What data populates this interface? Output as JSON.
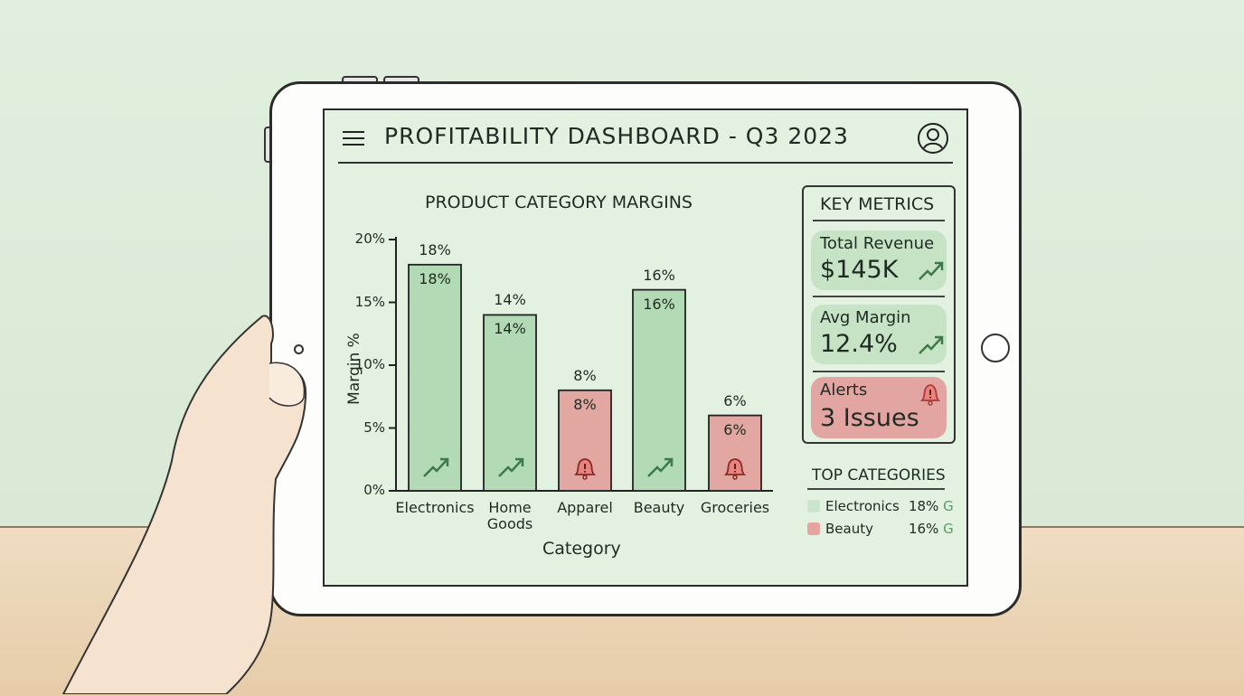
{
  "header": {
    "title": "PROFITABILITY DASHBOARD - Q3 2023",
    "menu_icon": "hamburger-menu-icon",
    "profile_icon": "user-avatar-icon"
  },
  "colors": {
    "positive": "#a9d6ad",
    "alert": "#e39a97",
    "screen": "#e3f1e1"
  },
  "chart_data": {
    "type": "bar",
    "title": "PRODUCT CATEGORY MARGINS",
    "xlabel": "Category",
    "ylabel": "Margin %",
    "ylim": [
      0,
      20
    ],
    "yticks": [
      "0%",
      "5%",
      "10%",
      "15%",
      "20%"
    ],
    "categories": [
      "Electronics",
      "Home Goods",
      "Apparel",
      "Beauty",
      "Groceries"
    ],
    "values": [
      18,
      14,
      8,
      16,
      6
    ],
    "value_labels": [
      "18%",
      "14%",
      "8%",
      "16%",
      "6%"
    ],
    "status": [
      "positive",
      "positive",
      "alert",
      "positive",
      "alert"
    ],
    "icons": [
      "trending-up-icon",
      "trending-up-icon",
      "alert-bell-icon",
      "trending-up-icon",
      "alert-bell-icon"
    ],
    "grid": false
  },
  "metrics": {
    "title": "KEY METRICS",
    "items": [
      {
        "label": "Total Revenue",
        "value": "$145K",
        "icon": "trending-up-icon",
        "status": "positive"
      },
      {
        "label": "Avg Margin",
        "value": "12.4%",
        "icon": "trending-up-icon",
        "status": "positive"
      },
      {
        "label": "Alerts",
        "value": "3 Issues",
        "icon": "alert-bell-icon",
        "status": "alert"
      }
    ]
  },
  "top_categories": {
    "title": "TOP CATEGORIES",
    "items": [
      {
        "name": "Electronics",
        "value": "18%",
        "grade": "G",
        "color": "#c9e6cc"
      },
      {
        "name": "Beauty",
        "value": "16%",
        "grade": "G",
        "color": "#e6a3a0"
      }
    ]
  }
}
